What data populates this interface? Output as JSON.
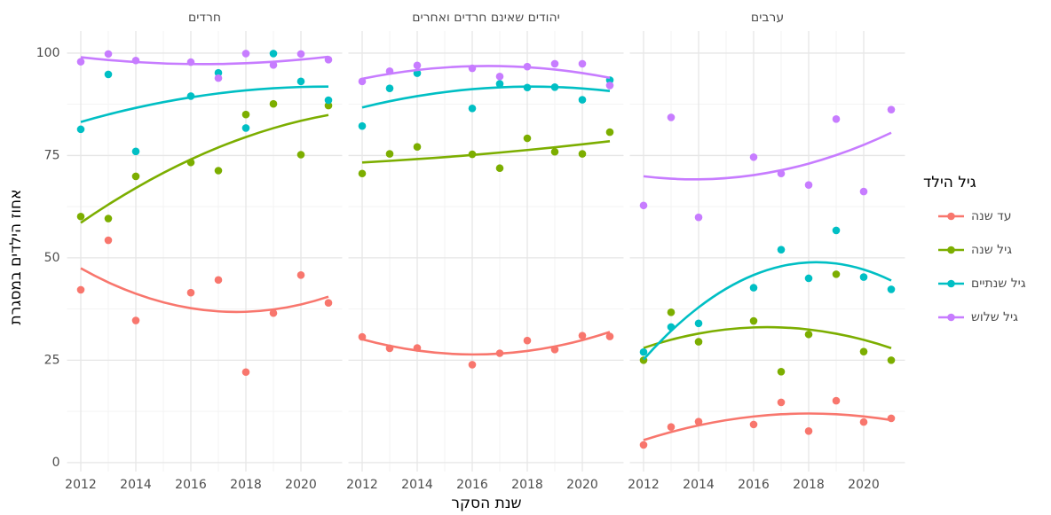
{
  "y_label": "אחוז הילדים במסגרת",
  "x_label": "שנת הסקר",
  "legend_title": "גיל הילד",
  "legend_position": "right",
  "chart_data": [
    {
      "type": "scatter",
      "title": "חרדים",
      "smooth": true,
      "grid": true,
      "x": [
        2012,
        2013,
        2014,
        2016,
        2017,
        2018,
        2019,
        2020,
        2021
      ],
      "xlim": [
        2011.5,
        2021.5
      ],
      "xticks": [
        2012,
        2014,
        2016,
        2018,
        2020
      ],
      "ylim": [
        -2.2,
        105.4
      ],
      "yticks": [
        0,
        25,
        50,
        75,
        100
      ],
      "series": [
        {
          "name": "עד שנה",
          "color": "#F8766D",
          "values": [
            42.2,
            54.3,
            34.7,
            41.5,
            44.6,
            22.1,
            36.5,
            45.8,
            39.0
          ]
        },
        {
          "name": "גיל שנה",
          "color": "#7CAE00",
          "values": [
            60.1,
            59.6,
            69.9,
            73.3,
            71.3,
            85.0,
            87.6,
            75.2,
            87.2
          ]
        },
        {
          "name": "גיל שנתיים",
          "color": "#00BFC4",
          "values": [
            81.4,
            94.8,
            76.0,
            89.5,
            95.2,
            81.7,
            99.9,
            93.1,
            88.5
          ]
        },
        {
          "name": "גיל שלוש",
          "color": "#C77CFF",
          "values": [
            97.9,
            99.8,
            98.2,
            97.8,
            93.9,
            99.9,
            97.1,
            99.8,
            98.4
          ]
        }
      ]
    },
    {
      "type": "scatter",
      "title": "יהודים שאינם חרדים ואחרים",
      "smooth": true,
      "grid": true,
      "x": [
        2012,
        2013,
        2014,
        2016,
        2017,
        2018,
        2019,
        2020,
        2021
      ],
      "xlim": [
        2011.5,
        2021.5
      ],
      "xticks": [
        2012,
        2014,
        2016,
        2018,
        2020
      ],
      "ylim": [
        -2.2,
        105.4
      ],
      "yticks": [
        0,
        25,
        50,
        75,
        100
      ],
      "series": [
        {
          "name": "עד שנה",
          "color": "#F8766D",
          "values": [
            30.7,
            27.9,
            28.0,
            23.9,
            26.7,
            29.8,
            27.6,
            31.0,
            30.8
          ]
        },
        {
          "name": "גיל שנה",
          "color": "#7CAE00",
          "values": [
            70.6,
            75.4,
            77.1,
            75.3,
            71.9,
            79.2,
            75.9,
            75.4,
            80.7
          ]
        },
        {
          "name": "גיל שנתיים",
          "color": "#00BFC4",
          "values": [
            82.2,
            91.4,
            95.1,
            86.5,
            92.5,
            91.6,
            91.7,
            88.6,
            93.4
          ]
        },
        {
          "name": "גיל שלוש",
          "color": "#C77CFF",
          "values": [
            93.1,
            95.6,
            97.0,
            96.3,
            94.3,
            96.7,
            97.4,
            97.4,
            92.1
          ]
        }
      ]
    },
    {
      "type": "scatter",
      "title": "ערבים",
      "smooth": true,
      "grid": true,
      "x": [
        2012,
        2013,
        2014,
        2016,
        2017,
        2018,
        2019,
        2020,
        2021
      ],
      "xlim": [
        2011.5,
        2021.5
      ],
      "xticks": [
        2012,
        2014,
        2016,
        2018,
        2020
      ],
      "ylim": [
        -2.2,
        105.4
      ],
      "yticks": [
        0,
        25,
        50,
        75,
        100
      ],
      "series": [
        {
          "name": "עד שנה",
          "color": "#F8766D",
          "values": [
            4.3,
            8.7,
            10.0,
            9.3,
            14.7,
            7.7,
            15.1,
            9.9,
            10.8
          ]
        },
        {
          "name": "גיל שנה",
          "color": "#7CAE00",
          "values": [
            25.0,
            36.7,
            29.5,
            34.6,
            22.2,
            31.3,
            46.0,
            27.1,
            25.0
          ]
        },
        {
          "name": "גיל שנתיים",
          "color": "#00BFC4",
          "values": [
            27.0,
            33.1,
            34.0,
            42.7,
            52.0,
            45.0,
            56.7,
            45.3,
            42.3
          ]
        },
        {
          "name": "גיל שלוש",
          "color": "#C77CFF",
          "values": [
            62.8,
            84.3,
            59.9,
            74.6,
            70.6,
            67.8,
            83.9,
            66.2,
            86.2
          ]
        }
      ]
    }
  ]
}
